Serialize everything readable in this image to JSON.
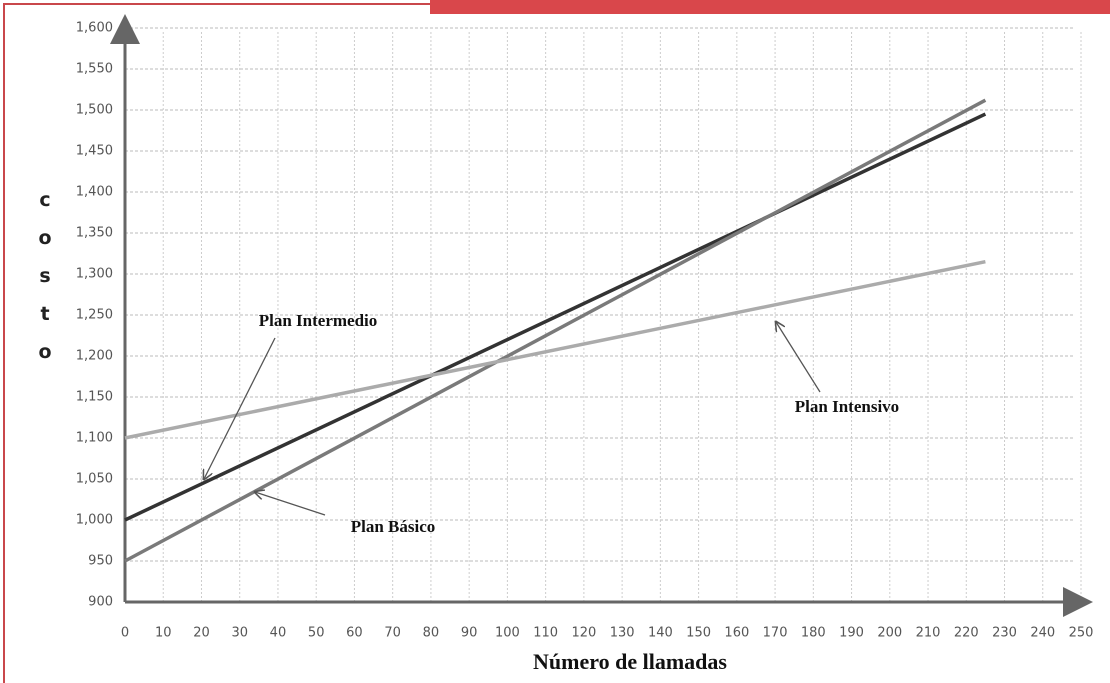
{
  "chart_data": {
    "type": "line",
    "x_label": "Número de llamadas",
    "y_label": "c o s t o",
    "x": [
      0,
      225
    ],
    "series": [
      {
        "name": "Plan Intermedio",
        "color": "#333333",
        "values": [
          1000,
          1495
        ]
      },
      {
        "name": "Plan Básico",
        "color": "#7a7a7a",
        "values": [
          950,
          1512
        ]
      },
      {
        "name": "Plan Intensivo",
        "color": "#ababab",
        "values": [
          1100,
          1315
        ]
      }
    ],
    "xlim": [
      0,
      250
    ],
    "xticks": [
      0,
      10,
      20,
      30,
      40,
      50,
      60,
      70,
      80,
      90,
      100,
      110,
      120,
      130,
      140,
      150,
      160,
      170,
      180,
      190,
      200,
      210,
      220,
      230,
      240,
      250
    ],
    "ylim": [
      900,
      1600
    ],
    "yticks": [
      900,
      950,
      {
        "value": 1000,
        "label": "1,000"
      },
      {
        "value": 1050,
        "label": "1,050"
      },
      {
        "value": 1100,
        "label": "1,100"
      },
      {
        "value": 1150,
        "label": "1,150"
      },
      {
        "value": 1200,
        "label": "1,200"
      },
      {
        "value": 1250,
        "label": "1,250"
      },
      {
        "value": 1300,
        "label": "1,300"
      },
      {
        "value": 1350,
        "label": "1,350"
      },
      {
        "value": 1400,
        "label": "1,400"
      },
      {
        "value": 1450,
        "label": "1,450"
      },
      {
        "value": 1500,
        "label": "1,500"
      },
      {
        "value": 1550,
        "label": "1,550"
      },
      {
        "value": {
          "value": 1600,
          "label": "1,600"
        },
        "label": "1,600"
      }
    ],
    "grid": true
  }
}
